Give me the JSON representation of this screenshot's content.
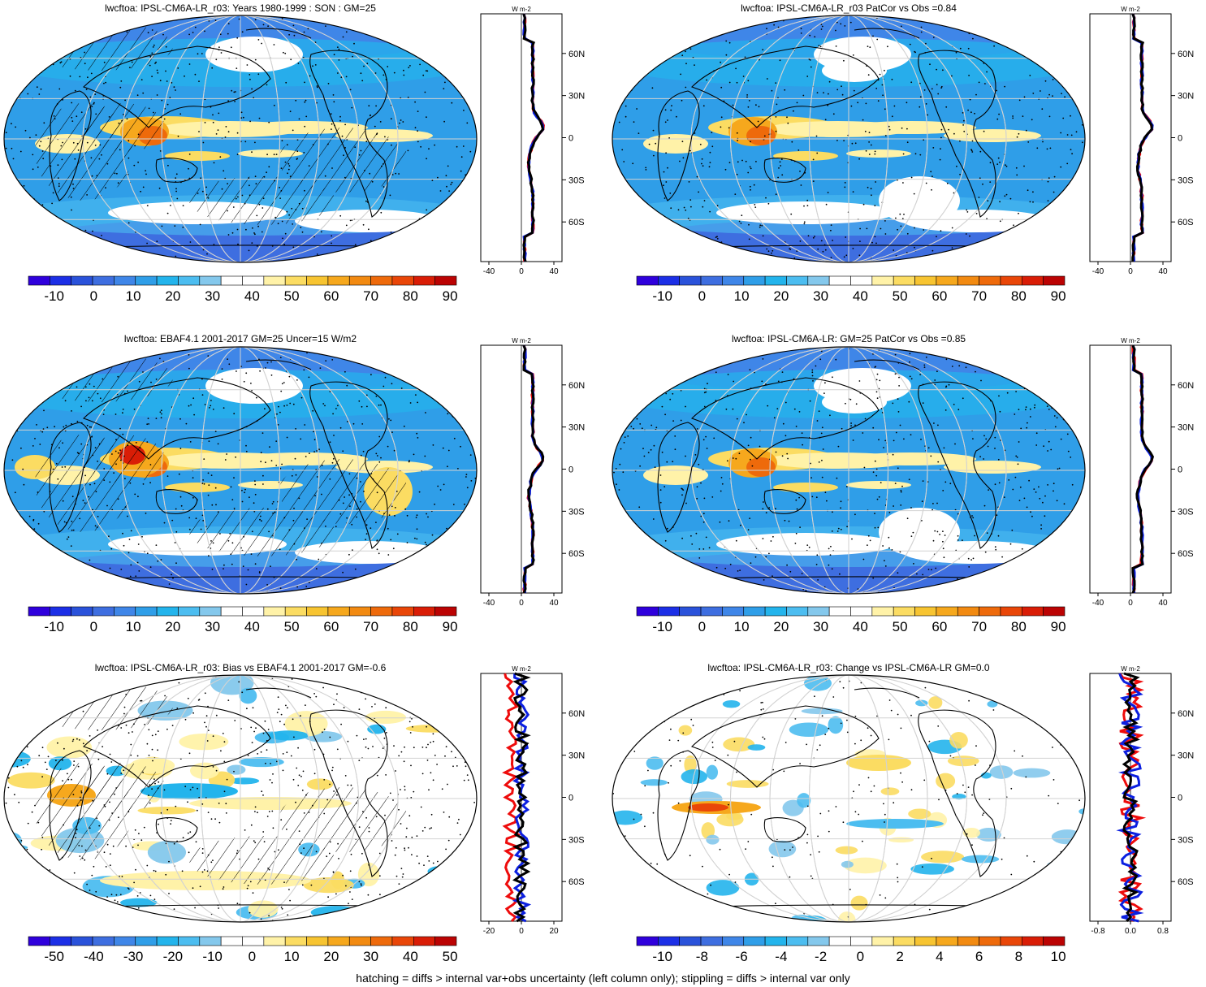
{
  "palette": {
    "main": [
      "#2f00dc",
      "#1c2fe6",
      "#2a52da",
      "#3e6ee0",
      "#3f86e8",
      "#2f9ee8",
      "#23b4ec",
      "#4cbdf0",
      "#84c8ec",
      "#ffffff",
      "#ffffff",
      "#fff2a8",
      "#fbdc62",
      "#f7c431",
      "#f6a81d",
      "#f28a11",
      "#ee6a0b",
      "#e94608",
      "#d91d06",
      "#bb0303"
    ],
    "profile": {
      "blue": "#0b1fe0",
      "red": "#ee0b0b",
      "black": "#000000"
    }
  },
  "footnote": "hatching = diffs > internal var+obs uncertainty (left column only); stippling = diffs > internal var only",
  "panels": [
    {
      "title": "lwcftoa: IPSL-CM6A-LR_r03: Years 1980-1999 : SON : GM=25",
      "cbar_labels": [
        "-10",
        "0",
        "10",
        "20",
        "30",
        "40",
        "50",
        "60",
        "70",
        "80",
        "90"
      ],
      "profile": {
        "units": "W m-2",
        "xticks": [
          "-40",
          "0",
          "40"
        ],
        "yticks": [
          "60N",
          "30N",
          "0",
          "30S",
          "60S"
        ]
      }
    },
    {
      "title": "lwcftoa: IPSL-CM6A-LR_r03 PatCor vs Obs =0.84",
      "cbar_labels": [
        "-10",
        "0",
        "10",
        "20",
        "30",
        "40",
        "50",
        "60",
        "70",
        "80",
        "90"
      ],
      "profile": {
        "units": "W m-2",
        "xticks": [
          "-40",
          "0",
          "40"
        ],
        "yticks": [
          "60N",
          "30N",
          "0",
          "30S",
          "60S"
        ]
      }
    },
    {
      "title": "lwcftoa: EBAF4.1 2001-2017 GM=25 Uncer=15 W/m2",
      "cbar_labels": [
        "-10",
        "0",
        "10",
        "20",
        "30",
        "40",
        "50",
        "60",
        "70",
        "80",
        "90"
      ],
      "profile": {
        "units": "W m-2",
        "xticks": [
          "-40",
          "0",
          "40"
        ],
        "yticks": [
          "60N",
          "30N",
          "0",
          "30S",
          "60S"
        ]
      }
    },
    {
      "title": "lwcftoa: IPSL-CM6A-LR: GM=25 PatCor vs Obs =0.85",
      "cbar_labels": [
        "-10",
        "0",
        "10",
        "20",
        "30",
        "40",
        "50",
        "60",
        "70",
        "80",
        "90"
      ],
      "profile": {
        "units": "W m-2",
        "xticks": [
          "-40",
          "0",
          "40"
        ],
        "yticks": [
          "60N",
          "30N",
          "0",
          "30S",
          "60S"
        ]
      }
    },
    {
      "title": "lwcftoa: IPSL-CM6A-LR_r03: Bias vs EBAF4.1 2001-2017  GM=-0.6",
      "cbar_labels": [
        "-50",
        "-40",
        "-30",
        "-20",
        "-10",
        "0",
        "10",
        "20",
        "30",
        "40",
        "50"
      ],
      "profile": {
        "units": "W m-2",
        "xticks": [
          "-20",
          "0",
          "20"
        ],
        "yticks": [
          "60N",
          "30N",
          "0",
          "30S",
          "60S"
        ]
      }
    },
    {
      "title": "lwcftoa: IPSL-CM6A-LR_r03: Change vs IPSL-CM6A-LR GM=0.0",
      "cbar_labels": [
        "-10",
        "-8",
        "-6",
        "-4",
        "-2",
        "0",
        "2",
        "4",
        "6",
        "8",
        "10"
      ],
      "profile": {
        "units": "W m-2",
        "xticks": [
          "-0.8",
          "0.0",
          "0.8"
        ],
        "yticks": [
          "60N",
          "30N",
          "0",
          "30S",
          "60S"
        ]
      }
    }
  ]
}
